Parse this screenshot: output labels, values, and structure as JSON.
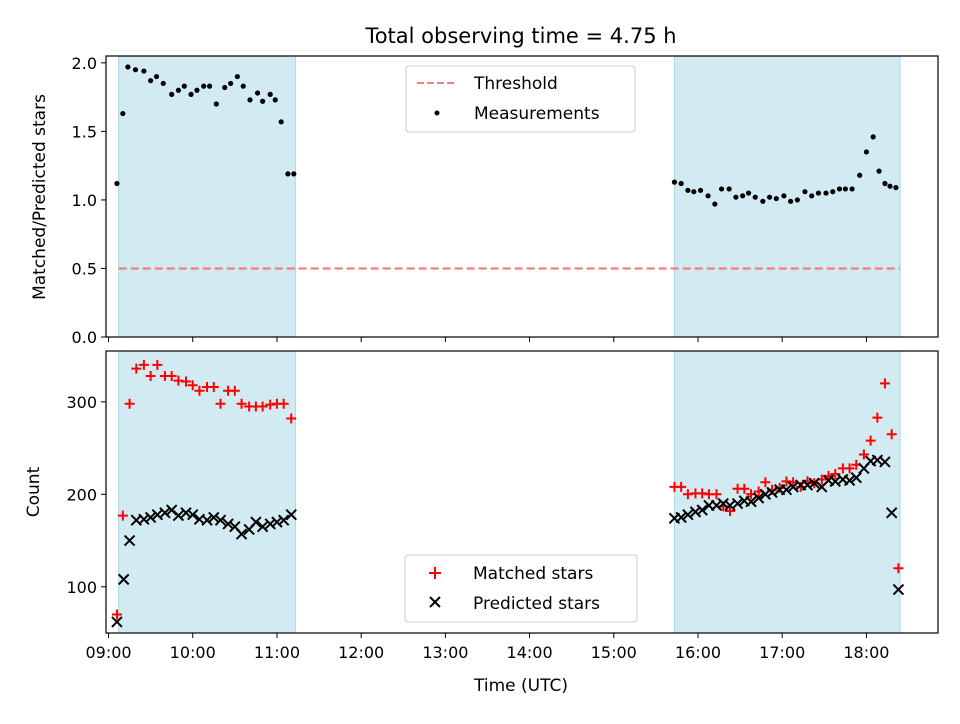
{
  "chart_data": {
    "type": "scatter",
    "title": "Total observing time = 4.75 h",
    "xlabel": "Time (UTC)",
    "x_unit": "hours UTC",
    "xlim": [
      8.97,
      18.85
    ],
    "x_ticks": [
      9,
      10,
      11,
      12,
      13,
      14,
      15,
      16,
      17,
      18
    ],
    "x_tick_labels": [
      "09:00",
      "10:00",
      "11:00",
      "12:00",
      "13:00",
      "14:00",
      "15:00",
      "16:00",
      "17:00",
      "18:00"
    ],
    "shaded_intervals": [
      [
        9.12,
        11.22
      ],
      [
        15.72,
        18.4
      ]
    ],
    "shade_color": "#add8e6",
    "top": {
      "ylabel": "Matched/Predicted stars",
      "ylim": [
        0,
        2.05
      ],
      "y_ticks": [
        0.0,
        0.5,
        1.0,
        1.5,
        2.0
      ],
      "y_tick_labels": [
        "0.0",
        "0.5",
        "1.0",
        "1.5",
        "2.0"
      ],
      "threshold": 0.5,
      "threshold_color": "#f08080",
      "legend": [
        "Threshold",
        "Measurements"
      ],
      "measurements": {
        "name": "Measurements",
        "color": "#000000",
        "x": [
          9.1,
          9.17,
          9.23,
          9.32,
          9.42,
          9.5,
          9.57,
          9.65,
          9.75,
          9.83,
          9.9,
          9.98,
          10.05,
          10.13,
          10.2,
          10.28,
          10.38,
          10.45,
          10.53,
          10.6,
          10.68,
          10.77,
          10.83,
          10.92,
          10.98,
          11.05,
          11.13,
          11.2,
          15.72,
          15.8,
          15.88,
          15.95,
          16.03,
          16.12,
          16.2,
          16.28,
          16.37,
          16.45,
          16.53,
          16.6,
          16.68,
          16.77,
          16.85,
          16.93,
          17.02,
          17.1,
          17.18,
          17.27,
          17.35,
          17.43,
          17.52,
          17.6,
          17.68,
          17.75,
          17.83,
          17.92,
          18.0,
          18.08,
          18.15,
          18.22,
          18.28,
          18.35
        ],
        "y": [
          1.12,
          1.63,
          1.97,
          1.95,
          1.94,
          1.87,
          1.9,
          1.85,
          1.77,
          1.8,
          1.83,
          1.77,
          1.8,
          1.83,
          1.83,
          1.7,
          1.82,
          1.85,
          1.9,
          1.83,
          1.73,
          1.78,
          1.72,
          1.77,
          1.73,
          1.57,
          1.19,
          1.19,
          1.13,
          1.12,
          1.07,
          1.06,
          1.07,
          1.03,
          0.97,
          1.08,
          1.08,
          1.02,
          1.03,
          1.05,
          1.02,
          0.99,
          1.02,
          1.01,
          1.03,
          0.99,
          1.0,
          1.06,
          1.03,
          1.05,
          1.05,
          1.06,
          1.08,
          1.08,
          1.08,
          1.18,
          1.35,
          1.46,
          1.21,
          1.12,
          1.1,
          1.09
        ],
        "note": ""
      }
    },
    "bottom": {
      "ylabel": "Count",
      "ylim": [
        50,
        355
      ],
      "y_ticks": [
        100,
        200,
        300
      ],
      "y_tick_labels": [
        "100",
        "200",
        "300"
      ],
      "legend": [
        "Matched stars",
        "Predicted stars"
      ],
      "series": [
        {
          "name": "Matched stars",
          "marker": "+",
          "color": "#ff0000",
          "x": [
            9.1,
            9.17,
            9.25,
            9.33,
            9.42,
            9.5,
            9.58,
            9.67,
            9.75,
            9.83,
            9.92,
            10.0,
            10.08,
            10.17,
            10.25,
            10.33,
            10.42,
            10.5,
            10.58,
            10.67,
            10.75,
            10.83,
            10.92,
            11.0,
            11.08,
            11.17,
            15.72,
            15.8,
            15.88,
            15.97,
            16.05,
            16.13,
            16.22,
            16.3,
            16.38,
            16.47,
            16.55,
            16.63,
            16.72,
            16.8,
            16.88,
            16.97,
            17.05,
            17.13,
            17.22,
            17.3,
            17.38,
            17.47,
            17.55,
            17.63,
            17.72,
            17.8,
            17.88,
            17.97,
            18.05,
            18.13,
            18.22,
            18.3,
            18.38
          ],
          "y": [
            70,
            177,
            298,
            336,
            340,
            328,
            340,
            328,
            328,
            323,
            322,
            318,
            312,
            316,
            316,
            298,
            312,
            312,
            298,
            295,
            295,
            295,
            297,
            298,
            298,
            282,
            208,
            208,
            200,
            201,
            201,
            200,
            200,
            187,
            182,
            206,
            206,
            200,
            203,
            213,
            205,
            207,
            214,
            213,
            208,
            214,
            212,
            216,
            220,
            222,
            228,
            228,
            232,
            243,
            258,
            283,
            320,
            265,
            120
          ]
        },
        {
          "name": "Predicted stars",
          "marker": "x",
          "color": "#000000",
          "x": [
            9.1,
            9.18,
            9.25,
            9.33,
            9.42,
            9.5,
            9.58,
            9.67,
            9.75,
            9.83,
            9.92,
            10.0,
            10.08,
            10.17,
            10.25,
            10.33,
            10.42,
            10.5,
            10.58,
            10.67,
            10.75,
            10.83,
            10.92,
            11.0,
            11.08,
            11.17,
            15.72,
            15.8,
            15.88,
            15.97,
            16.05,
            16.13,
            16.22,
            16.3,
            16.38,
            16.47,
            16.55,
            16.63,
            16.72,
            16.8,
            16.88,
            16.97,
            17.05,
            17.13,
            17.22,
            17.3,
            17.38,
            17.47,
            17.55,
            17.63,
            17.72,
            17.8,
            17.88,
            17.97,
            18.05,
            18.13,
            18.22,
            18.3,
            18.38
          ],
          "y": [
            62,
            108,
            150,
            172,
            173,
            175,
            178,
            180,
            183,
            177,
            180,
            178,
            173,
            172,
            175,
            172,
            168,
            165,
            157,
            162,
            170,
            165,
            168,
            170,
            172,
            178,
            174,
            175,
            178,
            181,
            183,
            188,
            188,
            190,
            188,
            190,
            193,
            192,
            196,
            200,
            202,
            205,
            205,
            208,
            210,
            210,
            212,
            208,
            215,
            214,
            216,
            215,
            218,
            228,
            236,
            237,
            235,
            180,
            97
          ]
        }
      ]
    }
  }
}
